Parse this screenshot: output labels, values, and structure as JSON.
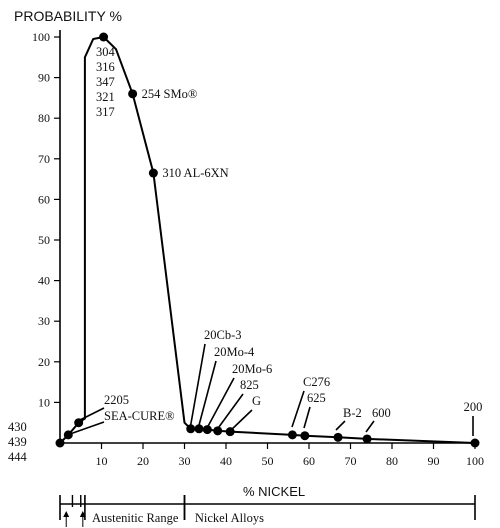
{
  "chart_data": {
    "type": "line",
    "title": "PROBABILITY %",
    "xlabel": "% NICKEL",
    "ylabel": "",
    "xlim": [
      0,
      100
    ],
    "ylim": [
      0,
      100
    ],
    "x_ticks": [
      "10",
      "20",
      "30",
      "40",
      "50",
      "60",
      "70",
      "80",
      "90",
      "100"
    ],
    "y_ticks": [
      "10",
      "20",
      "30",
      "40",
      "50",
      "60",
      "70",
      "80",
      "90",
      "100"
    ],
    "grid": false,
    "legend": "none",
    "series": [
      {
        "values": [
          {
            "x": 0,
            "y": 0
          },
          {
            "x": 2,
            "y": 2
          },
          {
            "x": 4.5,
            "y": 5
          },
          {
            "x": 6,
            "y": 6
          },
          {
            "x": 6,
            "y": 95
          },
          {
            "x": 8,
            "y": 99.5
          },
          {
            "x": 10.5,
            "y": 100
          },
          {
            "x": 13.5,
            "y": 97
          },
          {
            "x": 17.5,
            "y": 86
          },
          {
            "x": 22.5,
            "y": 66.5
          },
          {
            "x": 30,
            "y": 5
          },
          {
            "x": 31.5,
            "y": 3.5
          },
          {
            "x": 33.5,
            "y": 3.5
          },
          {
            "x": 35.5,
            "y": 3.3
          },
          {
            "x": 38,
            "y": 3
          },
          {
            "x": 41,
            "y": 2.8
          },
          {
            "x": 56,
            "y": 2
          },
          {
            "x": 59,
            "y": 1.8
          },
          {
            "x": 67,
            "y": 1.4
          },
          {
            "x": 74,
            "y": 1
          },
          {
            "x": 100,
            "y": 0
          }
        ]
      }
    ],
    "markers": [
      {
        "x": 0,
        "y": 0
      },
      {
        "x": 2,
        "y": 2
      },
      {
        "x": 4.5,
        "y": 5
      },
      {
        "x": 10.5,
        "y": 100
      },
      {
        "x": 17.5,
        "y": 86
      },
      {
        "x": 22.5,
        "y": 66.5
      },
      {
        "x": 31.5,
        "y": 3.5
      },
      {
        "x": 33.5,
        "y": 3.5
      },
      {
        "x": 35.5,
        "y": 3.3
      },
      {
        "x": 38,
        "y": 3
      },
      {
        "x": 41,
        "y": 2.8
      },
      {
        "x": 56,
        "y": 2
      },
      {
        "x": 59,
        "y": 1.8
      },
      {
        "x": 67,
        "y": 1.4
      },
      {
        "x": 74,
        "y": 1
      },
      {
        "x": 100,
        "y": 0
      }
    ],
    "left_labels": [
      "430",
      "439",
      "444"
    ],
    "peak_grades": [
      "304",
      "316",
      "347",
      "321",
      "317"
    ],
    "annotations": [
      {
        "text": "254 SMo®",
        "x": 17.5,
        "y": 86
      },
      {
        "text": "310 AL-6XN",
        "x": 22.5,
        "y": 66.5
      },
      {
        "text": "2205",
        "x": 4.5,
        "y": 5
      },
      {
        "text": "SEA-CURE®",
        "x": 2,
        "y": 2
      },
      {
        "text": "20Cb-3",
        "x": 31.5,
        "y": 3.5
      },
      {
        "text": "20Mo-4",
        "x": 33.5,
        "y": 3.5
      },
      {
        "text": "20Mo-6",
        "x": 35.5,
        "y": 3.3
      },
      {
        "text": "825",
        "x": 38,
        "y": 3
      },
      {
        "text": "G",
        "x": 41,
        "y": 2.8
      },
      {
        "text": "C276",
        "x": 56,
        "y": 2
      },
      {
        "text": "625",
        "x": 59,
        "y": 1.8
      },
      {
        "text": "B-2",
        "x": 67,
        "y": 1.4
      },
      {
        "text": "600",
        "x": 74,
        "y": 1
      },
      {
        "text": "200",
        "x": 100,
        "y": 0
      }
    ],
    "ranges": [
      {
        "label": "Austenitic Range",
        "from": 6,
        "to": 30
      },
      {
        "label": "Nickel Alloys",
        "from": 30,
        "to": 100
      }
    ],
    "range_ticks": [
      0,
      3,
      5
    ],
    "colors": {
      "line": "#000000",
      "text": "#111111",
      "background": "#ffffff"
    }
  }
}
